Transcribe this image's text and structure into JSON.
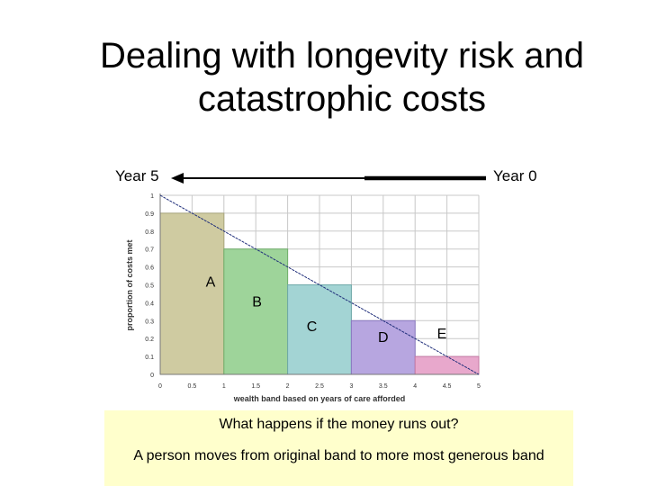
{
  "slide": {
    "title_line1": "Dealing with longevity risk and",
    "title_line2": "catastrophic costs",
    "year_start_label": "Year 5",
    "year_end_label": "Year 0",
    "question": "What happens if the money runs out?",
    "answer": "A person moves from original band to more most generous band"
  },
  "chart_data": {
    "type": "bar",
    "title": "",
    "xlabel": "wealth band based on years of care afforded",
    "ylabel": "proportion of costs met",
    "xlim": [
      0,
      5
    ],
    "ylim": [
      0,
      1
    ],
    "x_ticks": [
      "0",
      "0.5",
      "1",
      "1.5",
      "2",
      "2.5",
      "3",
      "3.5",
      "4",
      "4.5",
      "5"
    ],
    "y_ticks": [
      "0",
      "0.1",
      "0.2",
      "0.3",
      "0.4",
      "0.5",
      "0.6",
      "0.7",
      "0.8",
      "0.9",
      "1"
    ],
    "bars": [
      {
        "x_start": 0,
        "x_end": 1,
        "value": 0.9,
        "label": "A",
        "color": "#cfcba1",
        "stroke": "#a8a47c"
      },
      {
        "x_start": 1,
        "x_end": 2,
        "value": 0.7,
        "label": "B",
        "color": "#9ed49a",
        "stroke": "#6fae6a"
      },
      {
        "x_start": 2,
        "x_end": 3,
        "value": 0.5,
        "label": "C",
        "color": "#a3d4d4",
        "stroke": "#6fa9a9"
      },
      {
        "x_start": 3,
        "x_end": 4,
        "value": 0.3,
        "label": "D",
        "color": "#b7a6e0",
        "stroke": "#8a78bf"
      },
      {
        "x_start": 4,
        "x_end": 5,
        "value": 0.1,
        "label": "E",
        "color": "#e8a8cc",
        "stroke": "#c47aa3"
      }
    ],
    "diagonal_line": {
      "from": [
        0,
        1
      ],
      "to": [
        5,
        0
      ],
      "color": "#1f2e7a"
    },
    "gridline_color": "#c8c8c8"
  }
}
